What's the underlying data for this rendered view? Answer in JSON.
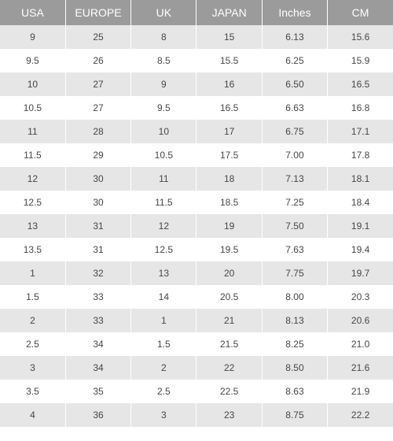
{
  "table": {
    "type": "table",
    "header_bg": "#9b9b9b",
    "header_color": "#ffffff",
    "row_odd_bg": "#e6e6e6",
    "row_even_bg": "#ffffff",
    "text_color": "#464646",
    "separator_color": "#ffffff",
    "header_fontsize": 14,
    "cell_fontsize": 12,
    "columns": [
      "USA",
      "EUROPE",
      "UK",
      "JAPAN",
      "Inches",
      "CM"
    ],
    "rows": [
      [
        "9",
        "25",
        "8",
        "15",
        "6.13",
        "15.6"
      ],
      [
        "9.5",
        "26",
        "8.5",
        "15.5",
        "6.25",
        "15.9"
      ],
      [
        "10",
        "27",
        "9",
        "16",
        "6.50",
        "16.5"
      ],
      [
        "10.5",
        "27",
        "9.5",
        "16.5",
        "6.63",
        "16.8"
      ],
      [
        "11",
        "28",
        "10",
        "17",
        "6.75",
        "17.1"
      ],
      [
        "11.5",
        "29",
        "10.5",
        "17.5",
        "7.00",
        "17.8"
      ],
      [
        "12",
        "30",
        "11",
        "18",
        "7.13",
        "18.1"
      ],
      [
        "12.5",
        "30",
        "11.5",
        "18.5",
        "7.25",
        "18.4"
      ],
      [
        "13",
        "31",
        "12",
        "19",
        "7.50",
        "19.1"
      ],
      [
        "13.5",
        "31",
        "12.5",
        "19.5",
        "7.63",
        "19.4"
      ],
      [
        "1",
        "32",
        "13",
        "20",
        "7.75",
        "19.7"
      ],
      [
        "1.5",
        "33",
        "14",
        "20.5",
        "8.00",
        "20.3"
      ],
      [
        "2",
        "33",
        "1",
        "21",
        "8.13",
        "20.6"
      ],
      [
        "2.5",
        "34",
        "1.5",
        "21.5",
        "8.25",
        "21.0"
      ],
      [
        "3",
        "34",
        "2",
        "22",
        "8.50",
        "21.6"
      ],
      [
        "3.5",
        "35",
        "2.5",
        "22.5",
        "8.63",
        "21.9"
      ],
      [
        "4",
        "36",
        "3",
        "23",
        "8.75",
        "22.2"
      ]
    ]
  }
}
